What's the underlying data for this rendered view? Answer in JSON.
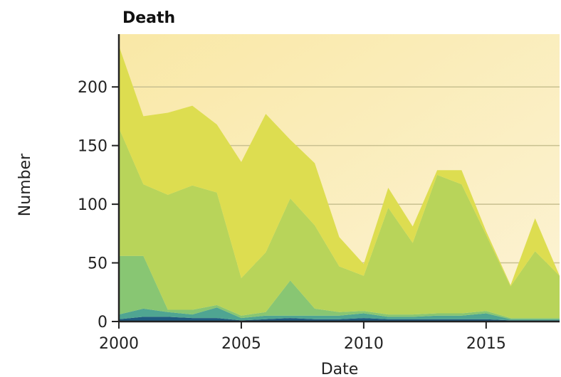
{
  "chart_data": {
    "type": "area",
    "title": "Death",
    "xlabel": "Date",
    "ylabel": "Number",
    "xlim": [
      2000,
      2018
    ],
    "ylim": [
      0,
      245
    ],
    "x_ticks": [
      "2000",
      "2005",
      "2010",
      "2015"
    ],
    "y_ticks": [
      "0",
      "50",
      "100",
      "150",
      "200"
    ],
    "grid": true,
    "legend": "none",
    "background_gradient": [
      "#f9e8a6",
      "#fcf3d5"
    ],
    "x": [
      2000,
      2001,
      2002,
      2003,
      2004,
      2005,
      2006,
      2007,
      2008,
      2009,
      2010,
      2011,
      2012,
      2013,
      2014,
      2015,
      2016,
      2017,
      2018
    ],
    "series": [
      {
        "color": "#1f5a80",
        "values": [
          2,
          4,
          4,
          3,
          3,
          1,
          2,
          3,
          2,
          2,
          3,
          2,
          2,
          2,
          2,
          2,
          1,
          1,
          1
        ]
      },
      {
        "color": "#4fa592",
        "values": [
          4,
          7,
          4,
          3,
          9,
          2,
          3,
          2,
          3,
          3,
          4,
          2,
          2,
          3,
          3,
          5,
          1,
          1,
          1
        ]
      },
      {
        "color": "#88c673",
        "values": [
          50,
          45,
          2,
          4,
          2,
          2,
          3,
          30,
          6,
          3,
          2,
          2,
          2,
          2,
          2,
          2,
          1,
          1,
          1
        ]
      },
      {
        "color": "#b8d45a",
        "values": [
          109,
          61,
          98,
          106,
          96,
          32,
          51,
          70,
          71,
          39,
          30,
          91,
          61,
          118,
          110,
          65,
          27,
          57,
          36
        ]
      },
      {
        "color": "#dddd50",
        "values": [
          70,
          58,
          70,
          68,
          58,
          99,
          118,
          50,
          53,
          25,
          10,
          17,
          14,
          4,
          12,
          3,
          1,
          28,
          0
        ]
      }
    ]
  }
}
